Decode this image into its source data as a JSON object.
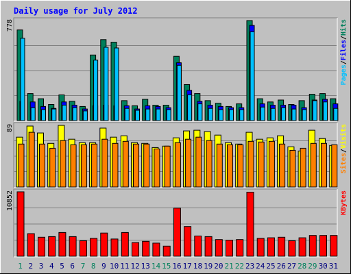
{
  "chart_data": {
    "type": "bar",
    "title": "Daily usage for July 2012",
    "categories": [
      "1",
      "2",
      "3",
      "4",
      "5",
      "6",
      "7",
      "8",
      "9",
      "10",
      "11",
      "12",
      "13",
      "14",
      "15",
      "16",
      "17",
      "18",
      "19",
      "20",
      "21",
      "22",
      "23",
      "24",
      "25",
      "26",
      "27",
      "28",
      "29",
      "30",
      "31"
    ],
    "weekend_days": [
      "1",
      "7",
      "8",
      "14",
      "15",
      "21",
      "22",
      "28",
      "29"
    ],
    "panels": [
      {
        "id": "hits_files_pages",
        "max_label": "778",
        "ylim": [
          0,
          778
        ],
        "legend": [
          {
            "text": "Pages",
            "color": "#00c0ff"
          },
          {
            "text": "Files",
            "color": "#0000ff"
          },
          {
            "text": "Hits",
            "color": "#00805c"
          }
        ],
        "series": [
          {
            "name": "Hits",
            "color": "#00805c",
            "values": [
              705,
              210,
              170,
              125,
              200,
              150,
              110,
              510,
              630,
              610,
              155,
              115,
              165,
              120,
              120,
              500,
              280,
              210,
              155,
              135,
              110,
              130,
              778,
              170,
              145,
              160,
              125,
              155,
              205,
              210,
              170
            ]
          },
          {
            "name": "Files",
            "color": "#0000ff",
            "values": [
              150,
              145,
              110,
              95,
              145,
              120,
              90,
              115,
              120,
              115,
              115,
              90,
              115,
              110,
              100,
              450,
              235,
              150,
              120,
              110,
              100,
              100,
              740,
              130,
              120,
              120,
              120,
              100,
              160,
              165,
              130
            ]
          },
          {
            "name": "Pages",
            "color": "#00c0ff",
            "values": [
              640,
              100,
              85,
              90,
              120,
              100,
              75,
              470,
              570,
              565,
              95,
              80,
              90,
              90,
              85,
              430,
              200,
              130,
              95,
              85,
              85,
              85,
              690,
              105,
              95,
              100,
              90,
              85,
              155,
              145,
              95
            ]
          }
        ]
      },
      {
        "id": "visits_sites",
        "max_label": "89",
        "ylim": [
          0,
          89
        ],
        "legend": [
          {
            "text": "Sites",
            "color": "#ff8000"
          },
          {
            "text": "Visits",
            "color": "#ffff00"
          }
        ],
        "series": [
          {
            "name": "Visits",
            "color": "#ffff00",
            "values": [
              72,
              88,
              78,
              63,
              89,
              69,
              64,
              64,
              85,
              72,
              74,
              64,
              63,
              57,
              59,
              71,
              81,
              82,
              80,
              75,
              64,
              62,
              79,
              69,
              71,
              74,
              58,
              52,
              82,
              70,
              60
            ]
          },
          {
            "name": "Sites",
            "color": "#ff8000",
            "values": [
              62,
              79,
              62,
              56,
              67,
              61,
              61,
              62,
              69,
              63,
              66,
              62,
              62,
              55,
              59,
              64,
              69,
              72,
              67,
              62,
              61,
              61,
              66,
              65,
              66,
              62,
              53,
              56,
              63,
              63,
              61
            ]
          }
        ]
      },
      {
        "id": "kbytes",
        "max_label": "10852",
        "ylim": [
          0,
          10852
        ],
        "legend": [
          {
            "text": "KBytes",
            "color": "#ff0000"
          }
        ],
        "series": [
          {
            "name": "KBytes",
            "color": "#ff0000",
            "values": [
              10852,
              3800,
              3200,
              3300,
              4000,
              3300,
              2600,
              3000,
              3900,
              2900,
              4000,
              2300,
              2500,
              2200,
              1700,
              8100,
              5000,
              3400,
              3300,
              2800,
              2700,
              2800,
              10800,
              3000,
              3100,
              3200,
              2600,
              3100,
              3500,
              3500,
              3500
            ]
          }
        ]
      }
    ],
    "colors": {
      "background": "#c0c0c0",
      "title": "#0000ff",
      "weekday_label": "#008040",
      "weekend_label": "#00805c",
      "grid": "#808080"
    }
  }
}
